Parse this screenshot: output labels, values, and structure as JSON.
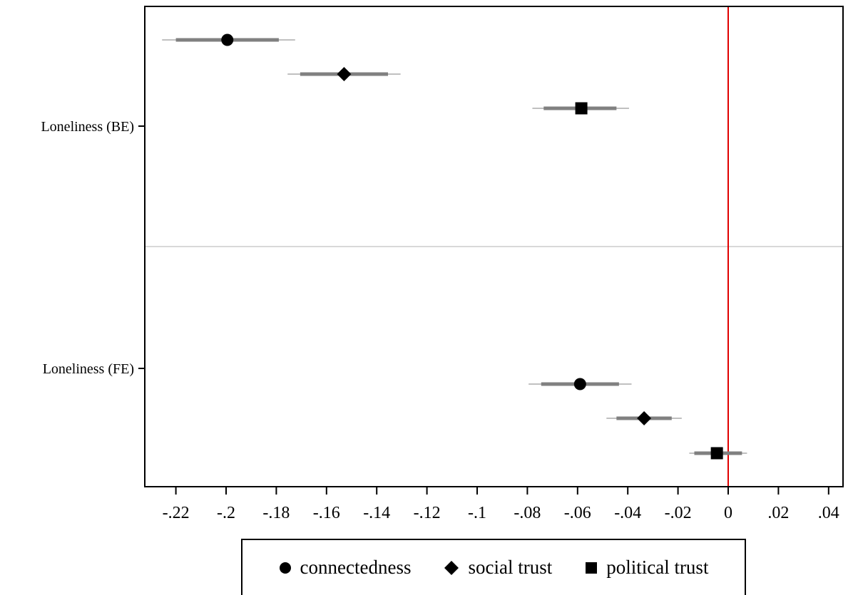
{
  "chart_data": {
    "type": "scatter",
    "subtype": "coefficient-plot",
    "orientation": "horizontal",
    "xlim": [
      -0.232,
      0.045
    ],
    "x_ticks": [
      -0.22,
      -0.2,
      -0.18,
      -0.16,
      -0.14,
      -0.12,
      -0.1,
      -0.08,
      -0.06,
      -0.04,
      -0.02,
      0,
      0.02,
      0.04
    ],
    "x_tick_labels": [
      "-.22",
      "-.2",
      "-.18",
      "-.16",
      "-.14",
      "-.12",
      "-.1",
      "-.08",
      "-.06",
      "-.04",
      "-.02",
      "0",
      ".02",
      ".04"
    ],
    "reference_line": {
      "x": 0,
      "color": "#e00000"
    },
    "groups": [
      {
        "label": "Loneliness (BE)"
      },
      {
        "label": "Loneliness (FE)"
      }
    ],
    "series": [
      {
        "name": "connectedness",
        "marker": "circle",
        "points": [
          {
            "group": "Loneliness (BE)",
            "estimate": -0.1995,
            "ci_inner": [
              -0.22,
              -0.179
            ],
            "ci_outer": [
              -0.2255,
              -0.1725
            ]
          },
          {
            "group": "Loneliness (FE)",
            "estimate": -0.059,
            "ci_inner": [
              -0.0745,
              -0.0435
            ],
            "ci_outer": [
              -0.0795,
              -0.0385
            ]
          }
        ]
      },
      {
        "name": "social trust",
        "marker": "diamond",
        "points": [
          {
            "group": "Loneliness (BE)",
            "estimate": -0.153,
            "ci_inner": [
              -0.1705,
              -0.1355
            ],
            "ci_outer": [
              -0.1755,
              -0.1305
            ]
          },
          {
            "group": "Loneliness (FE)",
            "estimate": -0.0335,
            "ci_inner": [
              -0.0445,
              -0.0225
            ],
            "ci_outer": [
              -0.0485,
              -0.0185
            ]
          }
        ]
      },
      {
        "name": "political trust",
        "marker": "square",
        "points": [
          {
            "group": "Loneliness (BE)",
            "estimate": -0.0585,
            "ci_inner": [
              -0.0735,
              -0.0445
            ],
            "ci_outer": [
              -0.078,
              -0.0395
            ]
          },
          {
            "group": "Loneliness (FE)",
            "estimate": -0.0045,
            "ci_inner": [
              -0.0135,
              0.0055
            ],
            "ci_outer": [
              -0.0155,
              0.0075
            ]
          }
        ]
      }
    ],
    "colors": {
      "marker": "#000000",
      "ci_inner": "#808080",
      "ci_outer": "#c0c0c0",
      "divider": "#d9d9d9",
      "reference": "#e00000"
    },
    "grid": false,
    "legend_position": "bottom"
  }
}
